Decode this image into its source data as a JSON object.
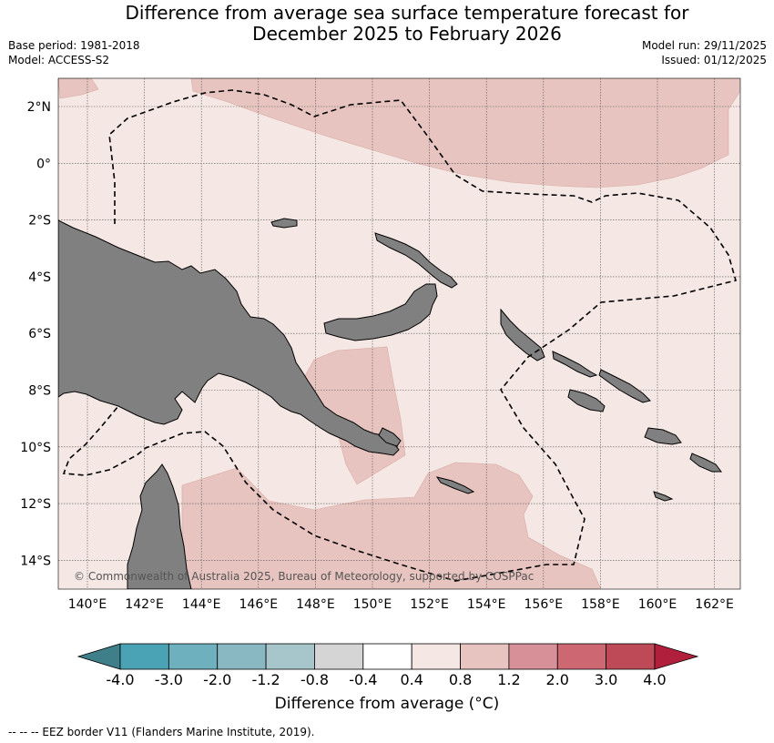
{
  "title_line1": "Difference from average sea surface temperature forecast for",
  "title_line2": "December 2025 to February 2026",
  "base_period": "Base period: 1981-2018",
  "model": "Model: ACCESS-S2",
  "model_run": "Model run: 29/11/2025",
  "issued": "Issued: 01/12/2025",
  "copyright": "© Commonwealth of Australia 2025, Bureau of Meteorology, supported by COSPPac",
  "lon_labels": [
    "140°E",
    "142°E",
    "144°E",
    "146°E",
    "148°E",
    "150°E",
    "152°E",
    "154°E",
    "156°E",
    "158°E",
    "160°E",
    "162°E"
  ],
  "lat_labels": [
    "2°N",
    "0°",
    "2°S",
    "4°S",
    "6°S",
    "8°S",
    "10°S",
    "12°S",
    "14°S"
  ],
  "colorbar": {
    "label": "Difference from average ($^\\circ$C)",
    "label_display": "Difference from average (°C)",
    "ticks": [
      "-4.0",
      "-3.0",
      "-2.0",
      "-1.2",
      "-0.8",
      "-0.4",
      "0.4",
      "0.8",
      "1.2",
      "2.0",
      "3.0",
      "4.0"
    ],
    "colors": [
      "#3e7f89",
      "#4aa3b4",
      "#6eb0be",
      "#8ab8c2",
      "#a7c6cb",
      "#d5d5d5",
      "#ffffff",
      "#f4e7e4",
      "#e7c4bf",
      "#d78f98",
      "#cd6873",
      "#be4a58",
      "#b01f3c"
    ]
  },
  "footnote": "-- -- -- EEZ border V11 (Flanders Marine Institute, 2019).",
  "map_colors": {
    "land": "#808080",
    "sea_light": "#f4e7e4",
    "sea_warm": "#e7c4bf",
    "coast": "#000000"
  }
}
